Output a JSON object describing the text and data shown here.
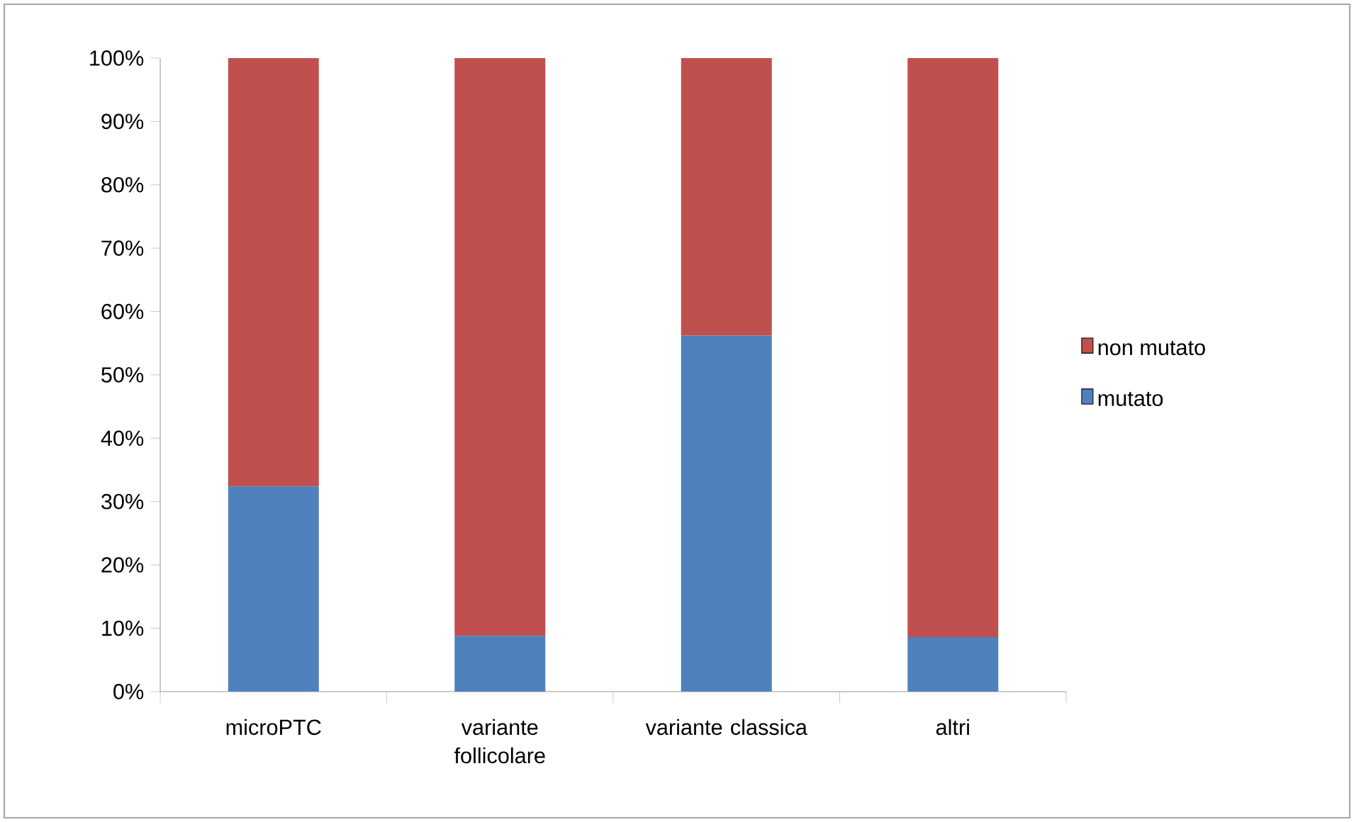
{
  "chart_data": {
    "type": "bar",
    "stacked": true,
    "categories": [
      "microPTC",
      "variante follicolare",
      "variante classica",
      "altri"
    ],
    "series": [
      {
        "name": "mutato",
        "color": "#4f81bd",
        "values": [
          32.4,
          8.8,
          56.2,
          8.6
        ]
      },
      {
        "name": "non mutato",
        "color": "#c0504d",
        "values": [
          67.6,
          91.2,
          43.8,
          91.4
        ]
      }
    ],
    "ylim": [
      0,
      100
    ],
    "yticks": [
      {
        "value": 0,
        "label": "0%"
      },
      {
        "value": 10,
        "label": "10%"
      },
      {
        "value": 20,
        "label": "20%"
      },
      {
        "value": 30,
        "label": "30%"
      },
      {
        "value": 40,
        "label": "40%"
      },
      {
        "value": 50,
        "label": "50%"
      },
      {
        "value": 60,
        "label": "60%"
      },
      {
        "value": 70,
        "label": "70%"
      },
      {
        "value": 80,
        "label": "80%"
      },
      {
        "value": 90,
        "label": "90%"
      },
      {
        "value": 100,
        "label": "100%"
      }
    ],
    "legend": "right",
    "grid": false
  }
}
